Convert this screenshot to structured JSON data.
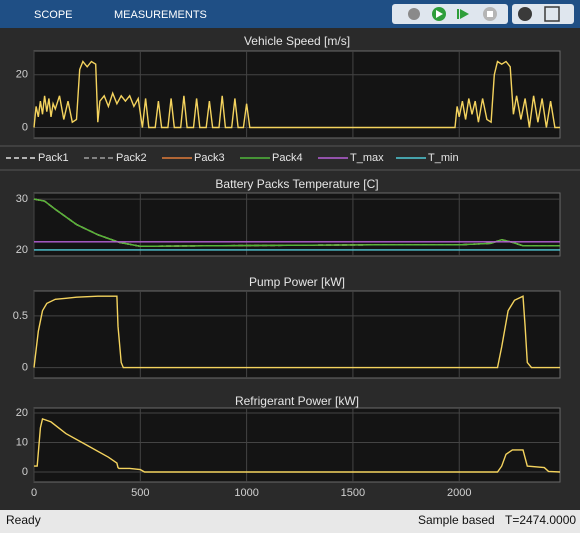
{
  "toolbar": {
    "tabs": [
      "SCOPE",
      "MEASUREMENTS"
    ]
  },
  "status": {
    "left": "Ready",
    "mode": "Sample based",
    "time": "T=2474.0000"
  },
  "chart_data": [
    {
      "type": "line",
      "title": "Vehicle Speed [m/s]",
      "color": "#f4d35e",
      "x": [
        0,
        10,
        20,
        30,
        40,
        50,
        60,
        70,
        80,
        90,
        100,
        120,
        140,
        160,
        180,
        200,
        215,
        230,
        250,
        270,
        290,
        300,
        310,
        330,
        350,
        370,
        390,
        410,
        430,
        450,
        470,
        490,
        510,
        525,
        540,
        570,
        585,
        600,
        630,
        645,
        660,
        690,
        705,
        720,
        750,
        765,
        780,
        810,
        825,
        840,
        870,
        885,
        900,
        930,
        945,
        960,
        985,
        1000,
        1015,
        1980,
        1990,
        2000,
        2015,
        2030,
        2045,
        2060,
        2075,
        2090,
        2110,
        2130,
        2150,
        2165,
        2180,
        2200,
        2220,
        2240,
        2255,
        2270,
        2290,
        2310,
        2330,
        2350,
        2370,
        2390,
        2410,
        2430,
        2450,
        2474
      ],
      "values": [
        0,
        8,
        4,
        10,
        5,
        12,
        6,
        11,
        4,
        9,
        7,
        12,
        3,
        10,
        2,
        3,
        22,
        25,
        23,
        25,
        24,
        2,
        10,
        12,
        8,
        13,
        9,
        12,
        10,
        12,
        8,
        11,
        0,
        11,
        0,
        0,
        10,
        0,
        0,
        11,
        0,
        0,
        12,
        0,
        0,
        11,
        0,
        0,
        10,
        0,
        0,
        12,
        0,
        0,
        11,
        0,
        0,
        9,
        0,
        0,
        8,
        4,
        10,
        3,
        11,
        5,
        10,
        2,
        11,
        3,
        2,
        20,
        25,
        24,
        25,
        23,
        5,
        12,
        3,
        11,
        0,
        12,
        2,
        11,
        0,
        10,
        0,
        0
      ],
      "xlim": [
        0,
        2474
      ],
      "ylim": [
        -4,
        29
      ],
      "yticks": [
        0,
        20
      ],
      "grid": true
    },
    {
      "type": "line",
      "title": "Battery Packs Temperature [C]",
      "x": [
        0,
        50,
        100,
        200,
        300,
        400,
        500,
        800,
        1200,
        1600,
        2000,
        2150,
        2200,
        2250,
        2300,
        2474
      ],
      "series": [
        {
          "name": "Pack1",
          "color": "#e0e0e0",
          "line_style": "dashed",
          "values": [
            30,
            29.6,
            28,
            25,
            23,
            21.5,
            20.7,
            20.8,
            20.9,
            21,
            21,
            21.3,
            22,
            21.5,
            20.8,
            20.8
          ]
        },
        {
          "name": "Pack2",
          "color": "#a0a0a0",
          "line_style": "dashed",
          "values": [
            30,
            29.6,
            28,
            25,
            23,
            21.5,
            20.7,
            20.8,
            20.9,
            21,
            21,
            21.3,
            22,
            21.5,
            20.8,
            20.8
          ]
        },
        {
          "name": "Pack3",
          "color": "#e07b39",
          "line_style": "solid",
          "values": [
            30,
            29.6,
            28,
            25,
            23,
            21.5,
            20.7,
            20.8,
            20.9,
            21,
            21,
            21.3,
            22,
            21.5,
            20.8,
            20.8
          ]
        },
        {
          "name": "Pack4",
          "color": "#4fb83a",
          "line_style": "solid",
          "values": [
            30,
            29.6,
            28,
            25,
            23,
            21.5,
            20.7,
            20.8,
            20.9,
            21,
            21,
            21.3,
            22,
            21.5,
            20.8,
            20.8
          ]
        },
        {
          "name": "T_max",
          "color": "#b65fd6",
          "line_style": "solid",
          "values": [
            21.6,
            21.6,
            21.6,
            21.6,
            21.6,
            21.6,
            21.6,
            21.6,
            21.6,
            21.6,
            21.6,
            21.6,
            21.6,
            21.6,
            21.6,
            21.6
          ]
        },
        {
          "name": "T_min",
          "color": "#4fc9d6",
          "line_style": "solid",
          "values": [
            20,
            20,
            20,
            20,
            20,
            20,
            20,
            20,
            20,
            20,
            20,
            20,
            20,
            20,
            20,
            20
          ]
        }
      ],
      "xlim": [
        0,
        2474
      ],
      "ylim": [
        18.8,
        31.2
      ],
      "yticks": [
        20,
        30
      ],
      "grid": true
    },
    {
      "type": "line",
      "title": "Pump Power [kW]",
      "color": "#f4d35e",
      "x": [
        0,
        20,
        40,
        60,
        100,
        150,
        200,
        300,
        390,
        395,
        410,
        420,
        450,
        1000,
        2000,
        2180,
        2200,
        2230,
        2260,
        2300,
        2310,
        2320,
        2340,
        2474
      ],
      "values": [
        0,
        0.35,
        0.55,
        0.62,
        0.66,
        0.67,
        0.68,
        0.69,
        0.69,
        0.4,
        0.05,
        0,
        0,
        0,
        0,
        0,
        0.2,
        0.55,
        0.65,
        0.69,
        0.4,
        0.05,
        0,
        0
      ],
      "xlim": [
        0,
        2474
      ],
      "ylim": [
        -0.1,
        0.74
      ],
      "yticks": [
        0,
        0.5
      ],
      "grid": true
    },
    {
      "type": "line",
      "title": "Refrigerant Power [kW]",
      "color": "#f4d35e",
      "x": [
        0,
        15,
        30,
        40,
        80,
        150,
        250,
        350,
        390,
        395,
        400,
        450,
        500,
        520,
        550,
        1000,
        2000,
        2180,
        2200,
        2220,
        2250,
        2300,
        2320,
        2400,
        2420,
        2474
      ],
      "values": [
        2,
        2,
        15,
        18,
        17,
        13,
        9,
        5,
        3,
        1.5,
        1.2,
        1.2,
        0.8,
        0,
        0,
        0,
        0,
        0,
        2,
        6,
        7.5,
        7.5,
        2,
        1.5,
        0.2,
        0
      ],
      "xlim": [
        0,
        2474
      ],
      "ylim": [
        -3.4,
        21.7
      ],
      "xticks": [
        0,
        500,
        1000,
        1500,
        2000
      ],
      "yticks": [
        0,
        10,
        20
      ],
      "grid": true
    }
  ]
}
